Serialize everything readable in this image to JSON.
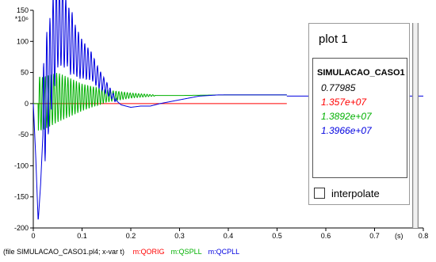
{
  "chart_data": {
    "type": "line",
    "title": "",
    "xlabel": "(s)",
    "ylabel": "",
    "y_multiplier": "*10⁶",
    "xlim": [
      0,
      0.8
    ],
    "ylim": [
      -200,
      150
    ],
    "x_ticks": [
      "0",
      "0.1",
      "0.2",
      "0.3",
      "0.4",
      "0.5",
      "0.6",
      "0.7",
      "0.8"
    ],
    "y_ticks": [
      "150",
      "100",
      "50",
      "0",
      "-50",
      "-100",
      "-150",
      "-200"
    ],
    "grid": false,
    "series": [
      {
        "name": "m:QCPLL",
        "color": "#0000e0",
        "points": [
          [
            0,
            0
          ],
          [
            0.005,
            -85
          ],
          [
            0.01,
            -190
          ],
          [
            0.015,
            -130
          ],
          [
            0.02,
            -45
          ],
          [
            0.025,
            10
          ],
          [
            0.03,
            35
          ],
          [
            0.035,
            55
          ],
          [
            0.04,
            90
          ],
          [
            0.045,
            110
          ],
          [
            0.05,
            130
          ],
          [
            0.055,
            120
          ],
          [
            0.06,
            135
          ],
          [
            0.065,
            110
          ],
          [
            0.07,
            115
          ],
          [
            0.075,
            95
          ],
          [
            0.08,
            100
          ],
          [
            0.085,
            85
          ],
          [
            0.09,
            82
          ],
          [
            0.095,
            75
          ],
          [
            0.1,
            72
          ],
          [
            0.11,
            65
          ],
          [
            0.12,
            60
          ],
          [
            0.13,
            45
          ],
          [
            0.14,
            35
          ],
          [
            0.15,
            25
          ],
          [
            0.16,
            15
          ],
          [
            0.17,
            5
          ],
          [
            0.18,
            -2
          ],
          [
            0.2,
            -6
          ],
          [
            0.22,
            -4
          ],
          [
            0.24,
            -4
          ],
          [
            0.26,
            0
          ],
          [
            0.28,
            3
          ],
          [
            0.3,
            6
          ],
          [
            0.32,
            9
          ],
          [
            0.34,
            12
          ],
          [
            0.36,
            13
          ],
          [
            0.38,
            14
          ],
          [
            0.4,
            14
          ],
          [
            0.45,
            14
          ],
          [
            0.5,
            14
          ],
          [
            0.52,
            14
          ]
        ],
        "oscillation_envelope": [
          [
            0.02,
            110
          ],
          [
            0.06,
            70
          ],
          [
            0.1,
            35
          ],
          [
            0.14,
            15
          ],
          [
            0.17,
            4
          ]
        ]
      },
      {
        "name": "m:QSPLL",
        "color": "#00b000",
        "points": [
          [
            0,
            0
          ],
          [
            0.02,
            0
          ],
          [
            0.05,
            10
          ],
          [
            0.1,
            10
          ],
          [
            0.15,
            12
          ],
          [
            0.2,
            13
          ],
          [
            0.3,
            13
          ],
          [
            0.4,
            14
          ],
          [
            0.5,
            14
          ],
          [
            0.52,
            14
          ]
        ],
        "oscillation_envelope": [
          [
            0.01,
            45
          ],
          [
            0.05,
            40
          ],
          [
            0.1,
            22
          ],
          [
            0.15,
            10
          ],
          [
            0.2,
            4
          ],
          [
            0.25,
            1
          ]
        ]
      },
      {
        "name": "m:QORIG",
        "color": "#ff0000",
        "points": [
          [
            0,
            0
          ],
          [
            0.52,
            0
          ]
        ]
      }
    ],
    "final_line": {
      "y": 12,
      "color": "#0000e0"
    }
  },
  "legend": {
    "title": "plot 1",
    "header": "SIMULACAO_CASO1",
    "values": [
      {
        "text": "0.77985",
        "color": "#000000"
      },
      {
        "text": "1.357e+07",
        "color": "#ff0000"
      },
      {
        "text": "1.3892e+07",
        "color": "#00b000"
      },
      {
        "text": "1.3966e+07",
        "color": "#0000e0"
      }
    ],
    "interpolate_label": "interpolate"
  },
  "footer": {
    "file_text": "(file SIMULACAO_CASO1.pl4; x-var t)",
    "vars": [
      {
        "text": "m:QORIG",
        "color": "#ff0000"
      },
      {
        "text": "m:QSPLL",
        "color": "#00b000"
      },
      {
        "text": "m:QCPLL",
        "color": "#0000e0"
      }
    ]
  }
}
